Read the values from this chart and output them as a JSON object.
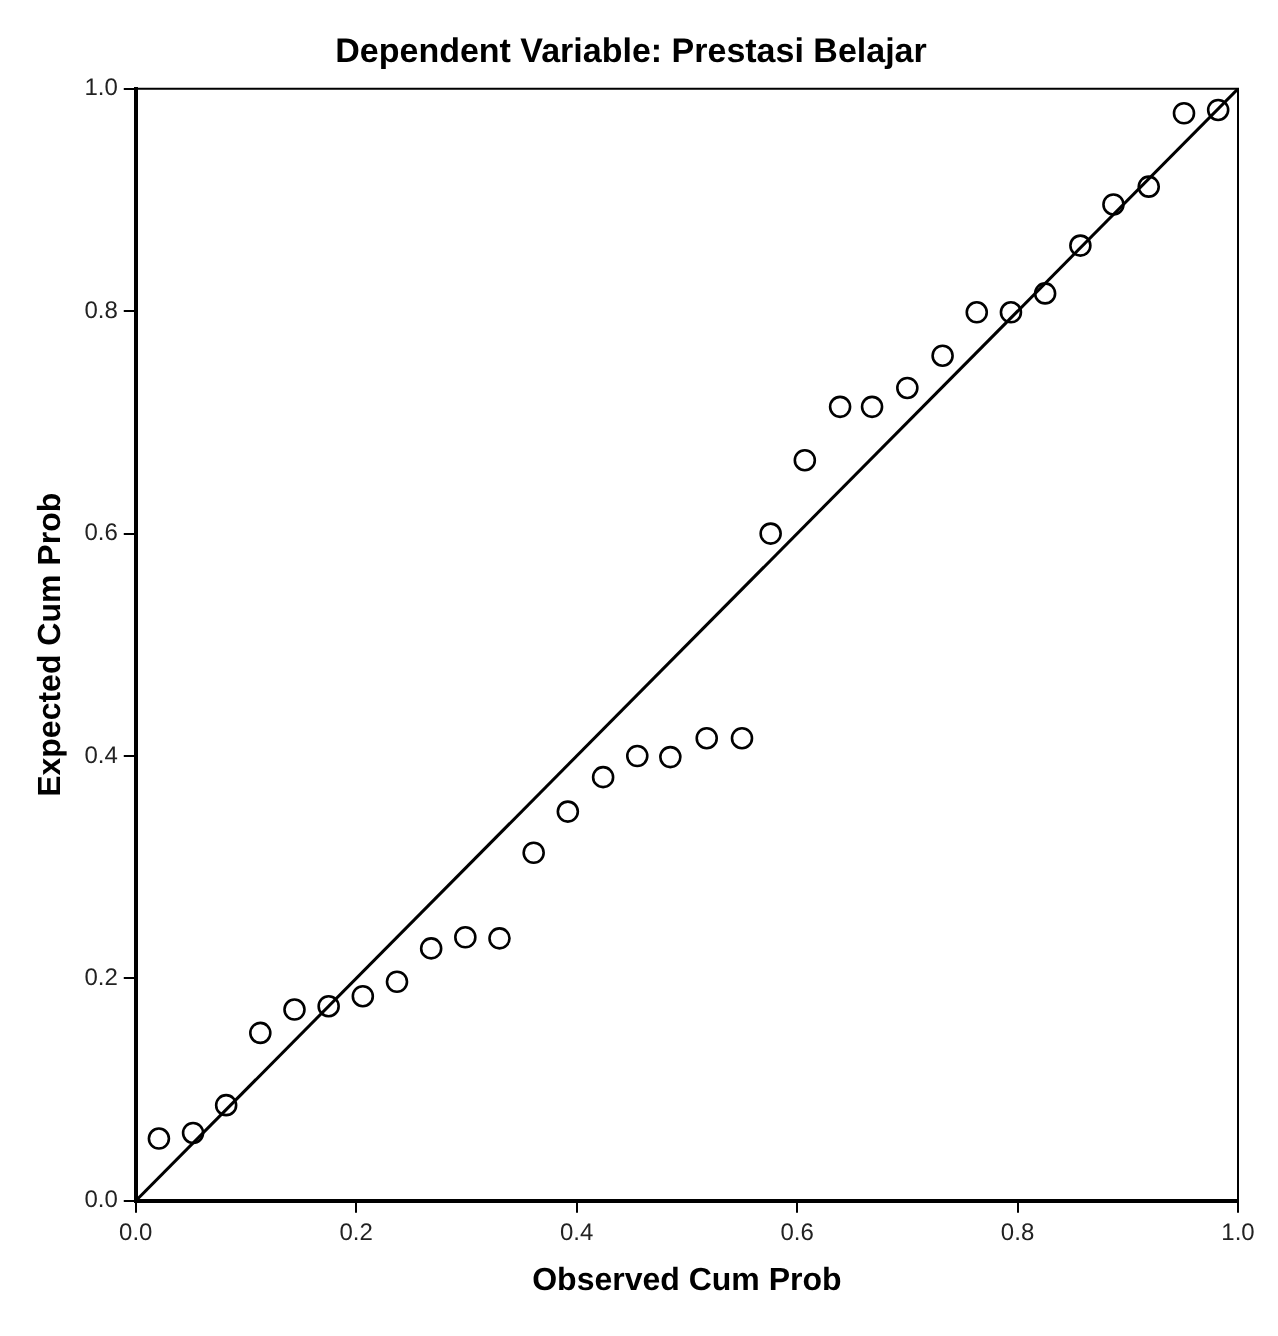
{
  "chart_data": {
    "type": "scatter",
    "title": "Dependent Variable: Prestasi Belajar",
    "xlabel": "Observed Cum Prob",
    "ylabel": "Expected Cum Prob",
    "xlim": [
      0,
      1
    ],
    "ylim": [
      0,
      1
    ],
    "xticks": [
      {
        "value": 0,
        "label": "0.0"
      },
      0.2,
      0.4,
      0.6,
      0.8,
      {
        "value": 1,
        "label": "1.0"
      }
    ],
    "yticks": [
      {
        "value": 0,
        "label": "0.0"
      },
      0.2,
      0.4,
      0.6,
      0.8,
      {
        "value": 1,
        "label": "1.0"
      }
    ],
    "grid": false,
    "legend": false,
    "marker": "circle",
    "series": [
      {
        "color": "#000000",
        "x": [
          0.021,
          0.052,
          0.082,
          0.113,
          0.144,
          0.175,
          0.206,
          0.237,
          0.268,
          0.299,
          0.33,
          0.361,
          0.392,
          0.424,
          0.455,
          0.485,
          0.518,
          0.55,
          0.576,
          0.607,
          0.639,
          0.668,
          0.7,
          0.732,
          0.763,
          0.794,
          0.825,
          0.857,
          0.887,
          0.919,
          0.951,
          0.982
        ],
        "values": [
          0.056,
          0.061,
          0.086,
          0.151,
          0.172,
          0.175,
          0.184,
          0.197,
          0.227,
          0.237,
          0.236,
          0.313,
          0.35,
          0.381,
          0.4,
          0.399,
          0.416,
          0.416,
          0.6,
          0.666,
          0.714,
          0.714,
          0.731,
          0.76,
          0.799,
          0.799,
          0.816,
          0.859,
          0.896,
          0.912,
          0.978,
          0.981
        ]
      },
      {
        "type": "line",
        "color": "#000000",
        "marker": "none",
        "line_style": "solid",
        "x": [
          0,
          1
        ],
        "values": [
          0,
          1
        ]
      }
    ]
  }
}
